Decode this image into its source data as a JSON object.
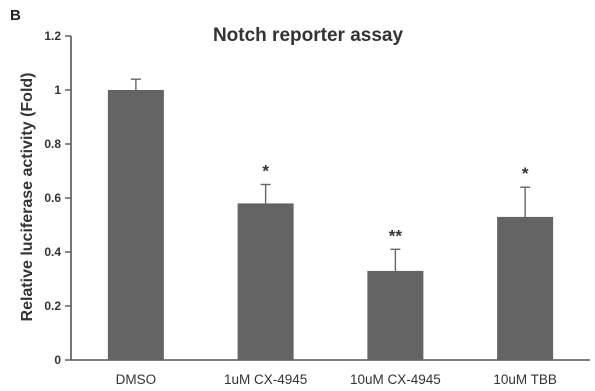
{
  "panel_label": "B",
  "colors": {
    "bar": "#646464",
    "axis": "#555555",
    "error_bar": "#666666",
    "text": "#333333"
  },
  "chart_data": {
    "type": "bar",
    "title": "Notch reporter assay",
    "xlabel": "",
    "ylabel": "Relative luciferase activity (Fold)",
    "ylim": [
      0,
      1.2
    ],
    "yticks": [
      0,
      0.2,
      0.4,
      0.6,
      0.8,
      1,
      1.2
    ],
    "ytick_labels": [
      "0",
      "0.2",
      "0.4",
      "0.6",
      "0.8",
      "1",
      "1.2"
    ],
    "categories": [
      "DMSO",
      "1uM CX-4945",
      "10uM CX-4945",
      "10uM TBB"
    ],
    "values": [
      1.0,
      0.58,
      0.33,
      0.53
    ],
    "errors": [
      0.04,
      0.07,
      0.08,
      0.11
    ],
    "significance": [
      "",
      "*",
      "**",
      "*"
    ],
    "grid": false,
    "legend": "none"
  }
}
